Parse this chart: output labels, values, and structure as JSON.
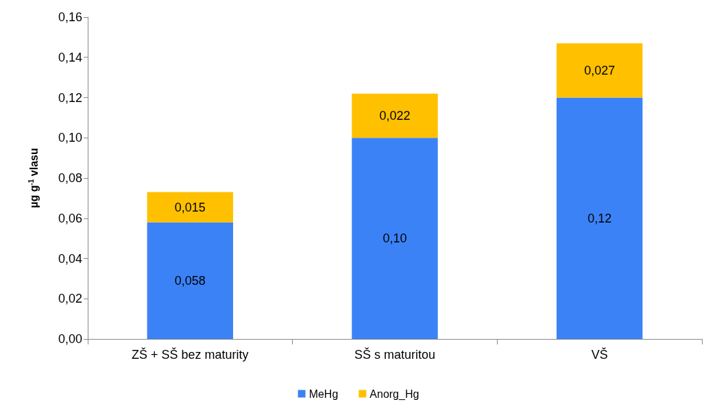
{
  "chart_data": {
    "type": "bar",
    "stacked": true,
    "ylabel": "µg g$^{-1}$ vlasu",
    "categories": [
      "ZŠ + SŠ bez maturity",
      "SŠ s maturitou",
      "VŠ"
    ],
    "series": [
      {
        "name": "MeHg",
        "color": "#3b82f6",
        "values": [
          0.058,
          0.1,
          0.12
        ],
        "value_labels": [
          "0,058",
          "0,10",
          "0,12"
        ]
      },
      {
        "name": "Anorg_Hg",
        "color": "#ffc000",
        "values": [
          0.015,
          0.022,
          0.027
        ],
        "value_labels": [
          "0,015",
          "0,022",
          "0,027"
        ]
      }
    ],
    "ylim": [
      0,
      0.16
    ],
    "yticks": [
      {
        "value": 0,
        "label": "0,00"
      },
      {
        "value": 0.02,
        "label": "0,02"
      },
      {
        "value": 0.04,
        "label": "0,04"
      },
      {
        "value": 0.06,
        "label": "0,06"
      },
      {
        "value": 0.08,
        "label": "0,08"
      },
      {
        "value": 0.1,
        "label": "0,10"
      },
      {
        "value": 0.12,
        "label": "0,12"
      },
      {
        "value": 0.14,
        "label": "0,14"
      },
      {
        "value": 0.16,
        "label": "0,16"
      }
    ],
    "grid": false,
    "legend": "bottom"
  }
}
